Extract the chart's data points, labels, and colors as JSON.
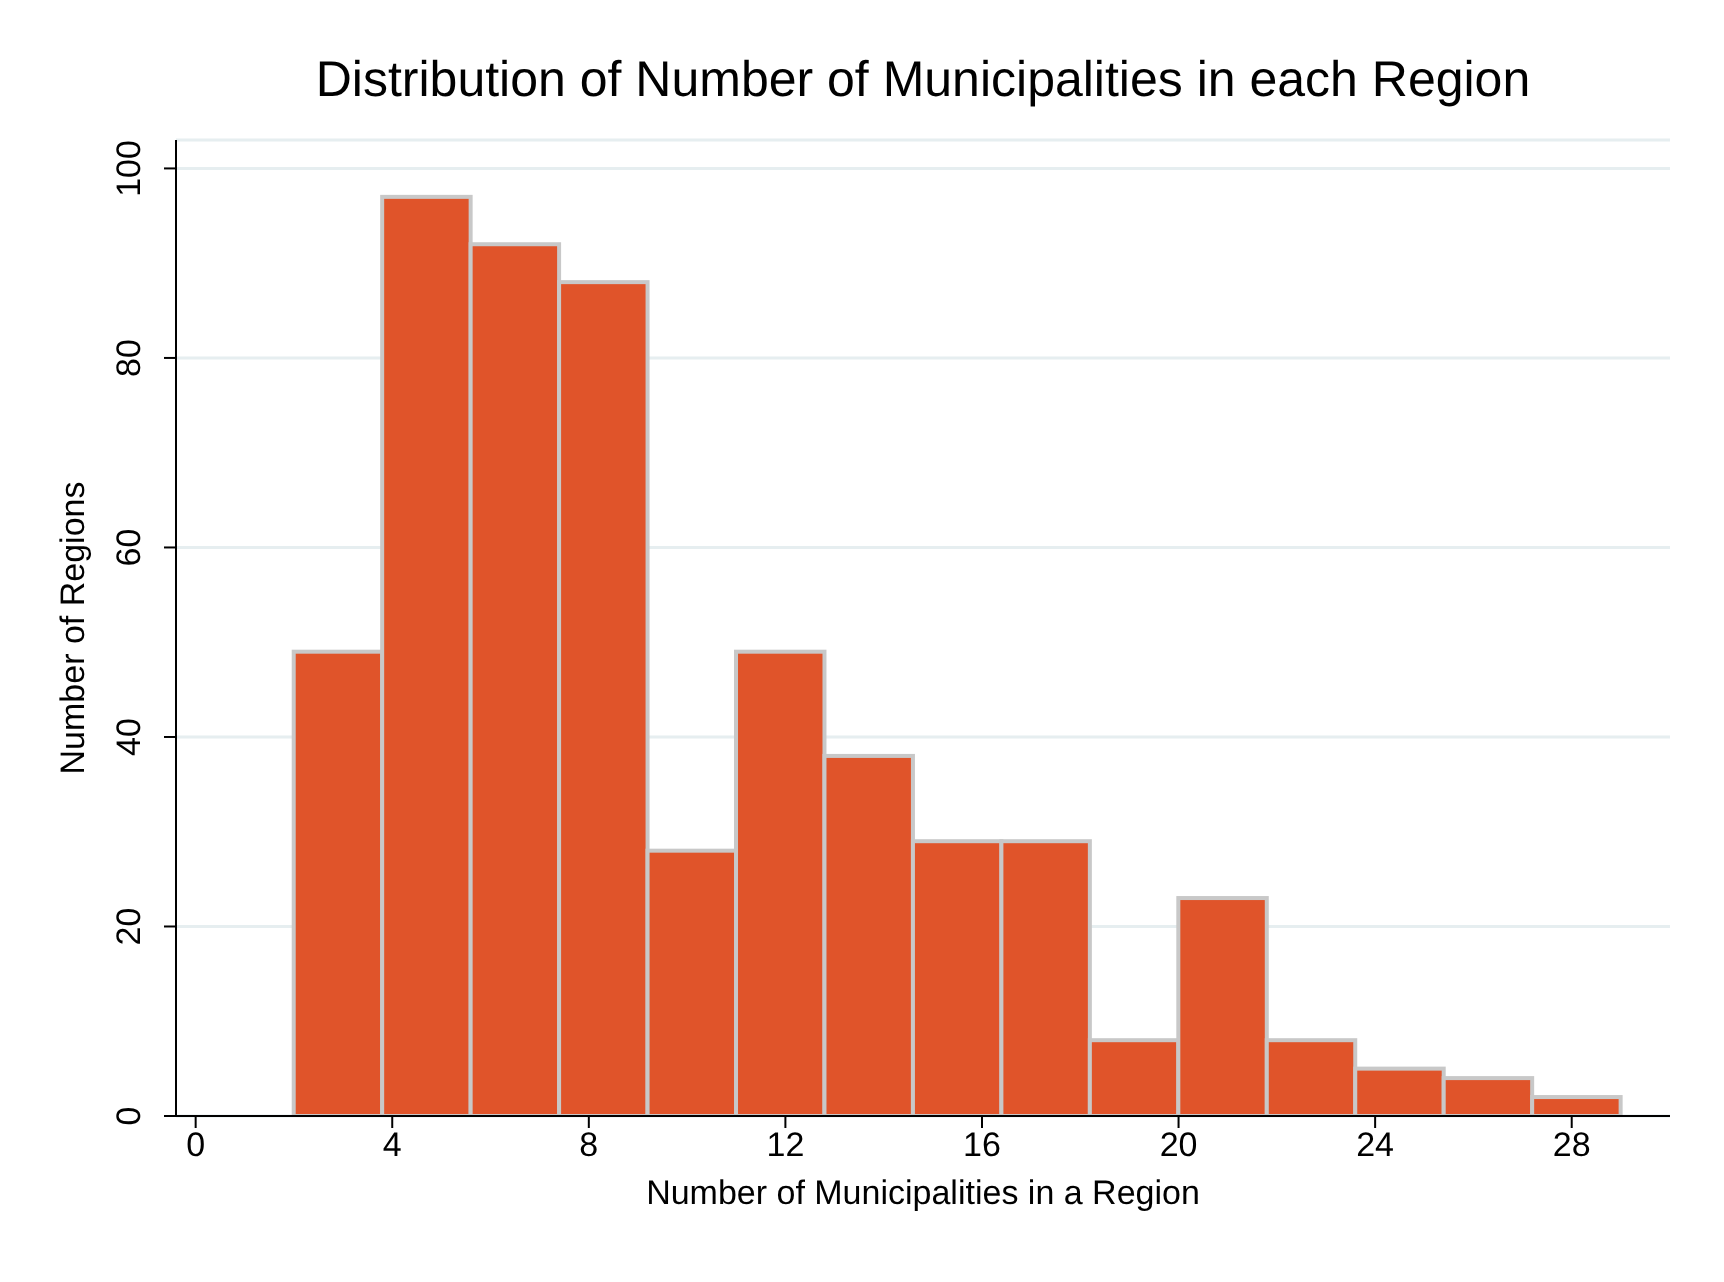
{
  "chart_data": {
    "type": "histogram",
    "title": "Distribution of Number of Municipalities in each Region",
    "xlabel": "Number of Municipalities in a Region",
    "ylabel": "Number of Regions",
    "bins": [
      2,
      3.8,
      5.6,
      7.4,
      9.2,
      11,
      12.8,
      14.6,
      16.4,
      18.2,
      20,
      21.8,
      23.6,
      25.4,
      27.2,
      29
    ],
    "values": [
      49,
      97,
      92,
      88,
      28,
      49,
      38,
      29,
      29,
      8,
      23,
      8,
      5,
      4,
      2
    ],
    "color": "#e0542a",
    "xlim": [
      -0.4,
      30
    ],
    "xticks": [
      0,
      4,
      8,
      12,
      16,
      20,
      24,
      28
    ],
    "ylim": [
      0,
      103
    ],
    "yticks": [
      0,
      20,
      40,
      60,
      80,
      100
    ],
    "grid": "y"
  }
}
